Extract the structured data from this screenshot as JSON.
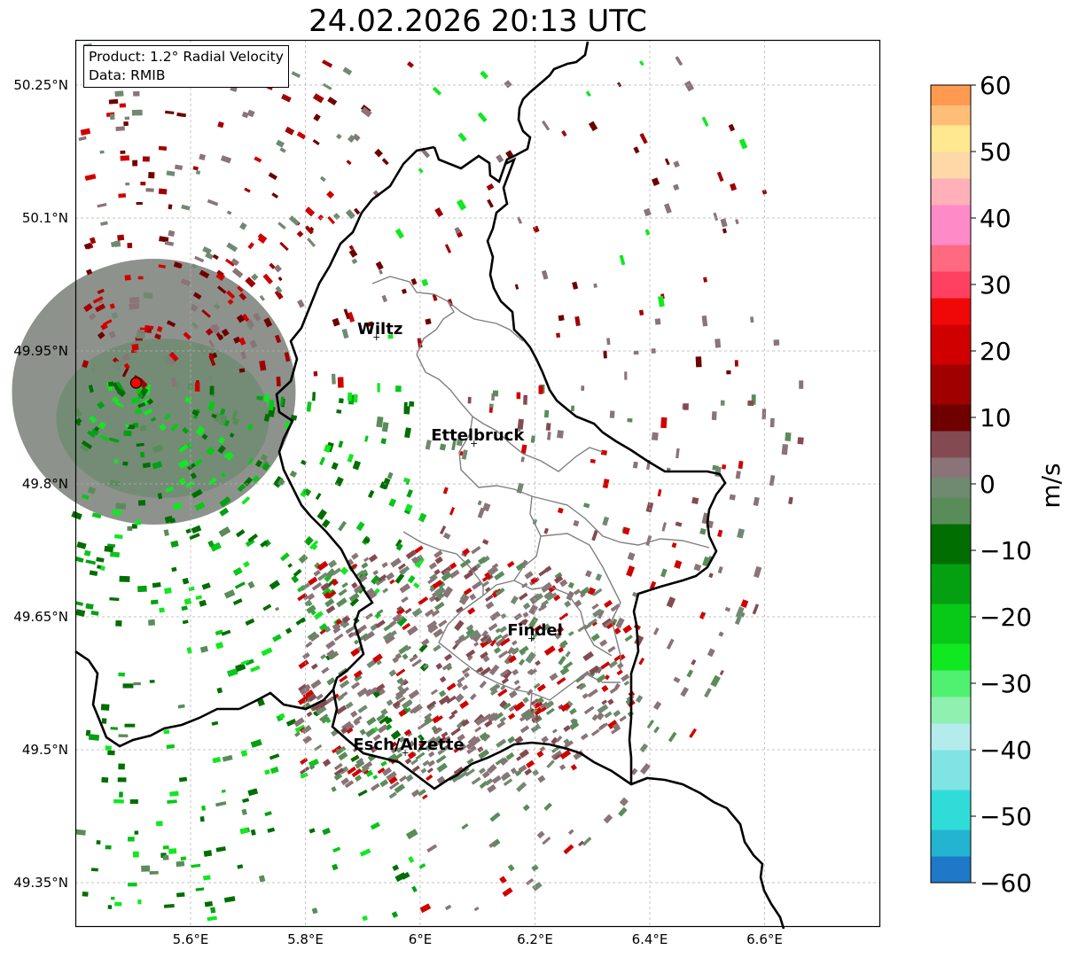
{
  "title": "24.02.2026 20:13 UTC",
  "info": {
    "product": "Product: 1.2° Radial Velocity",
    "data": "Data: RMIB"
  },
  "map": {
    "lon_range": [
      5.4,
      6.8
    ],
    "lat_range": [
      49.3,
      50.3
    ],
    "lon_ticks": [
      {
        "value": 5.6,
        "label": "5.6°E"
      },
      {
        "value": 5.8,
        "label": "5.8°E"
      },
      {
        "value": 6.0,
        "label": "6°E"
      },
      {
        "value": 6.2,
        "label": "6.2°E"
      },
      {
        "value": 6.4,
        "label": "6.4°E"
      },
      {
        "value": 6.6,
        "label": "6.6°E"
      }
    ],
    "lat_ticks": [
      {
        "value": 50.25,
        "label": "50.25°N"
      },
      {
        "value": 50.1,
        "label": "50.1°N"
      },
      {
        "value": 49.95,
        "label": "49.95°N"
      },
      {
        "value": 49.8,
        "label": "49.8°N"
      },
      {
        "value": 49.65,
        "label": "49.65°N"
      },
      {
        "value": 49.5,
        "label": "49.5°N"
      },
      {
        "value": 49.35,
        "label": "49.35°N"
      }
    ],
    "radar_site": {
      "lon": 5.505,
      "lat": 49.914
    },
    "cities": [
      {
        "name": "Wiltz",
        "lon": 5.93,
        "lat": 49.967
      },
      {
        "name": "Ettelbruck",
        "lon": 6.1,
        "lat": 49.847
      },
      {
        "name": "Findel",
        "lon": 6.2,
        "lat": 49.627
      },
      {
        "name": "Esch/Alzette",
        "lon": 5.98,
        "lat": 49.498
      }
    ]
  },
  "colorbar": {
    "label": "m/s",
    "vmin": -60,
    "vmax": 60,
    "ticks": [
      {
        "value": 60,
        "label": "60"
      },
      {
        "value": 50,
        "label": "50"
      },
      {
        "value": 40,
        "label": "40"
      },
      {
        "value": 30,
        "label": "30"
      },
      {
        "value": 20,
        "label": "20"
      },
      {
        "value": 10,
        "label": "10"
      },
      {
        "value": 0,
        "label": "0"
      },
      {
        "value": -10,
        "label": "−10"
      },
      {
        "value": -20,
        "label": "−20"
      },
      {
        "value": -30,
        "label": "−30"
      },
      {
        "value": -40,
        "label": "−40"
      },
      {
        "value": -50,
        "label": "−50"
      },
      {
        "value": -60,
        "label": "−60"
      }
    ],
    "bands": [
      {
        "from": -60,
        "to": -56,
        "color": "#1f78c8"
      },
      {
        "from": -56,
        "to": -52,
        "color": "#22b4d0"
      },
      {
        "from": -52,
        "to": -46,
        "color": "#30dcd8"
      },
      {
        "from": -46,
        "to": -40,
        "color": "#80e4e4"
      },
      {
        "from": -40,
        "to": -36,
        "color": "#b4ecee"
      },
      {
        "from": -36,
        "to": -32,
        "color": "#90f0b0"
      },
      {
        "from": -32,
        "to": -28,
        "color": "#50f070"
      },
      {
        "from": -28,
        "to": -24,
        "color": "#10e820"
      },
      {
        "from": -24,
        "to": -18,
        "color": "#08c818"
      },
      {
        "from": -18,
        "to": -12,
        "color": "#04a012"
      },
      {
        "from": -12,
        "to": -6,
        "color": "#006e00"
      },
      {
        "from": -6,
        "to": -2,
        "color": "#5a8c5a"
      },
      {
        "from": -2,
        "to": 1,
        "color": "#708a72"
      },
      {
        "from": 1,
        "to": 4,
        "color": "#8a7478"
      },
      {
        "from": 4,
        "to": 8,
        "color": "#844a52"
      },
      {
        "from": 8,
        "to": 12,
        "color": "#6e0000"
      },
      {
        "from": 12,
        "to": 18,
        "color": "#a00000"
      },
      {
        "from": 18,
        "to": 24,
        "color": "#d00000"
      },
      {
        "from": 24,
        "to": 28,
        "color": "#f00808"
      },
      {
        "from": 28,
        "to": 32,
        "color": "#ff4060"
      },
      {
        "from": 32,
        "to": 36,
        "color": "#ff6a80"
      },
      {
        "from": 36,
        "to": 42,
        "color": "#ff8ac8"
      },
      {
        "from": 42,
        "to": 46,
        "color": "#ffb0b8"
      },
      {
        "from": 46,
        "to": 50,
        "color": "#ffd8a8"
      },
      {
        "from": 50,
        "to": 54,
        "color": "#ffe890"
      },
      {
        "from": 54,
        "to": 57,
        "color": "#ffbe78"
      },
      {
        "from": 57,
        "to": 60,
        "color": "#ff9a50"
      }
    ]
  },
  "colors": {
    "border": "#000000",
    "canton": "#808080",
    "grid": "#b0b0b0",
    "radar_marker": "#ff0000"
  }
}
